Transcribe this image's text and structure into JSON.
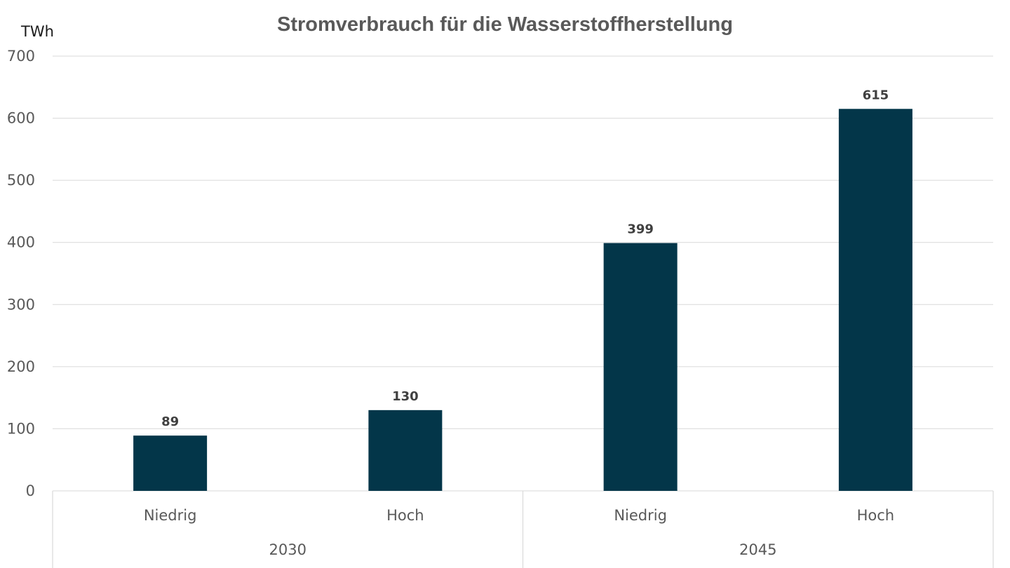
{
  "chart_data": {
    "type": "bar",
    "title": "Stromverbrauch für die Wasserstoffherstellung",
    "ylabel": "TWh",
    "xlabel": "",
    "ylim": [
      0,
      700
    ],
    "yticks": [
      0,
      100,
      200,
      300,
      400,
      500,
      600,
      700
    ],
    "grid": true,
    "legend": "none",
    "bar_color": "#033649",
    "groups": [
      {
        "label": "2030",
        "categories": [
          "Niedrig",
          "Hoch"
        ],
        "values": [
          89,
          130
        ]
      },
      {
        "label": "2045",
        "categories": [
          "Niedrig",
          "Hoch"
        ],
        "values": [
          399,
          615
        ]
      }
    ]
  }
}
